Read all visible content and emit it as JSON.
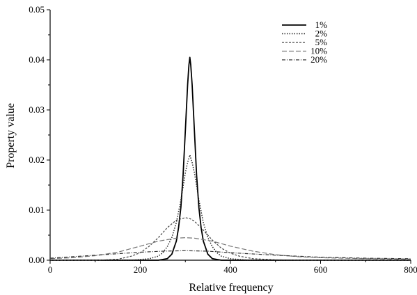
{
  "chart_data": {
    "type": "line",
    "xlabel": "Relative frequency",
    "ylabel": "Property value",
    "xlim": [
      0,
      800
    ],
    "ylim": [
      0,
      0.05
    ],
    "xticks": [
      0,
      200,
      400,
      600,
      800
    ],
    "yticks": [
      0.0,
      0.01,
      0.02,
      0.03,
      0.04,
      0.05
    ],
    "xtick_labels": [
      "0",
      "200",
      "400",
      "600",
      "800"
    ],
    "ytick_labels": [
      "0.00",
      "0.01",
      "0.02",
      "0.03",
      "0.04",
      "0.05"
    ],
    "grid": false,
    "legend_position": "top-right",
    "series": [
      {
        "name": "1%",
        "dash": "solid",
        "width": 1.8,
        "x": [
          0,
          200,
          240,
          260,
          270,
          280,
          285,
          290,
          295,
          300,
          305,
          308,
          310,
          312,
          315,
          320,
          325,
          330,
          335,
          340,
          350,
          360,
          380,
          400,
          600,
          800
        ],
        "y": [
          0,
          0,
          0.0,
          0.0003,
          0.0012,
          0.0038,
          0.0065,
          0.0105,
          0.017,
          0.026,
          0.035,
          0.039,
          0.0405,
          0.039,
          0.035,
          0.026,
          0.017,
          0.0105,
          0.0065,
          0.0038,
          0.0012,
          0.0003,
          0.0,
          0,
          0,
          0
        ]
      },
      {
        "name": "2%",
        "dash": "dotted",
        "width": 1.5,
        "x": [
          0,
          180,
          220,
          240,
          250,
          260,
          270,
          280,
          290,
          300,
          305,
          310,
          315,
          320,
          330,
          340,
          350,
          360,
          370,
          380,
          400,
          440,
          600,
          800
        ],
        "y": [
          0,
          0,
          0.0003,
          0.0008,
          0.0015,
          0.0027,
          0.0045,
          0.0075,
          0.012,
          0.0175,
          0.0195,
          0.021,
          0.0195,
          0.0175,
          0.012,
          0.0075,
          0.0045,
          0.0027,
          0.0015,
          0.0008,
          0.0003,
          0.0,
          0,
          0
        ]
      },
      {
        "name": "5%",
        "dash": "dashed",
        "width": 1.2,
        "x": [
          0,
          100,
          150,
          180,
          200,
          220,
          240,
          260,
          280,
          300,
          310,
          320,
          340,
          360,
          380,
          400,
          420,
          450,
          500,
          600,
          800
        ],
        "y": [
          0,
          0,
          0.0002,
          0.0008,
          0.0015,
          0.0028,
          0.0045,
          0.0065,
          0.008,
          0.0085,
          0.0083,
          0.0078,
          0.006,
          0.004,
          0.0024,
          0.0014,
          0.0008,
          0.0003,
          0.0001,
          0,
          0
        ]
      },
      {
        "name": "10%",
        "dash": "longdash",
        "width": 1.2,
        "x": [
          0,
          50,
          100,
          150,
          200,
          240,
          280,
          300,
          320,
          360,
          400,
          450,
          500,
          550,
          600,
          700,
          800
        ],
        "y": [
          0.0003,
          0.0005,
          0.0009,
          0.0016,
          0.0028,
          0.0038,
          0.0044,
          0.0045,
          0.0044,
          0.0038,
          0.0028,
          0.0018,
          0.0011,
          0.0007,
          0.0005,
          0.0003,
          0.0002
        ]
      },
      {
        "name": "20%",
        "dash": "dashdot",
        "width": 1.2,
        "x": [
          0,
          100,
          200,
          250,
          300,
          350,
          400,
          500,
          600,
          700,
          800
        ],
        "y": [
          0.0004,
          0.001,
          0.0016,
          0.0018,
          0.0019,
          0.0018,
          0.0015,
          0.001,
          0.0006,
          0.0004,
          0.0003
        ]
      }
    ]
  }
}
